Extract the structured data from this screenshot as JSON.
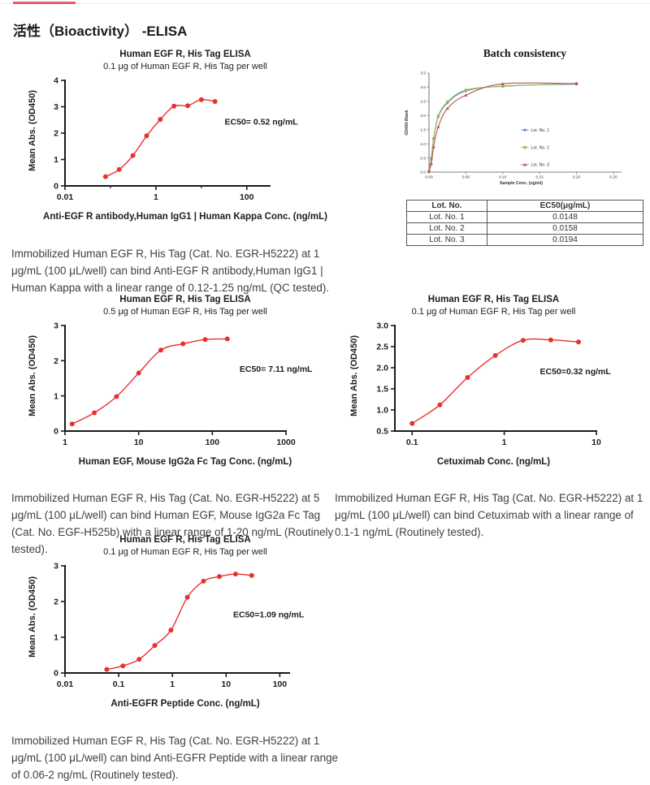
{
  "page": {
    "title": "活性（Bioactivity） -ELISA"
  },
  "captions": {
    "c1": "Immobilized Human EGF R, His Tag (Cat. No. EGR-H5222) at 1 μg/mL (100 μL/well) can bind Anti-EGF R antibody,Human IgG1 | Human Kappa with a linear range of 0.12-1.25 ng/mL (QC tested).",
    "c2": "Immobilized Human EGF R, His Tag (Cat. No. EGR-H5222) at 5 μg/mL (100 μL/well) can bind Human EGF, Mouse IgG2a Fc Tag (Cat. No. EGF-H525b) with a linear range of 1-20 ng/mL (Routinely tested).",
    "c3": "Immobilized Human EGF R, His Tag (Cat. No. EGR-H5222) at 1 μg/mL (100 μL/well) can bind Cetuximab with a linear range of 0.1-1 ng/mL (Routinely tested).",
    "c4": "Immobilized Human EGF R, His Tag (Cat. No. EGR-H5222) at 1 μg/mL (100 μL/well) can bind Anti-EGFR Peptide with a linear range of 0.06-2 ng/mL (Routinely tested)."
  },
  "batch_table": {
    "headers": [
      "Lot. No.",
      "EC50(μg/mL)"
    ],
    "rows": [
      [
        "Lot. No. 1",
        "0.0148"
      ],
      [
        "Lot. No. 2",
        "0.0158"
      ],
      [
        "Lot. No. 3",
        "0.0194"
      ]
    ]
  },
  "chart_data": [
    {
      "id": "elisa-anti-egfr-antibody",
      "type": "line",
      "title": "Human EGF R, His Tag ELISA",
      "subtitle": "0.1 μg of Human EGF R, His Tag per well",
      "xlabel": "Anti-EGF R antibody,Human IgG1 | Human Kappa Conc. (ng/mL)",
      "ylabel": "Mean Abs. (OD450)",
      "xscale": "log",
      "xlim": [
        0.01,
        320
      ],
      "ylim": [
        0,
        4
      ],
      "xticks": [
        "0.01",
        "1",
        "100"
      ],
      "minor_xticks": [
        0.1,
        10
      ],
      "yticks": [
        "0",
        "1",
        "2",
        "3",
        "4"
      ],
      "x": [
        0.078,
        0.156,
        0.3125,
        0.625,
        1.25,
        2.5,
        5,
        10,
        20
      ],
      "y": [
        0.35,
        0.62,
        1.15,
        1.9,
        2.52,
        3.02,
        3.04,
        3.27,
        3.2
      ],
      "annotation": "EC50= 0.52 ng/mL",
      "color": "#e8312d",
      "grid": false
    },
    {
      "id": "batch-consistency",
      "type": "line",
      "title": "Batch consistency",
      "xlabel": "Sample Conc. (ug/ml)",
      "ylabel": "OD450-Blank",
      "xscale": "linear",
      "xlim": [
        0,
        0.25
      ],
      "ylim": [
        0,
        3.5
      ],
      "xticks": [
        "0.00",
        "0.05",
        "0.10",
        "0.15",
        "0.20",
        "0.25"
      ],
      "yticks": [
        "0.0",
        "0.5",
        "1.0",
        "1.5",
        "2.0",
        "2.5",
        "3.0",
        "3.5"
      ],
      "x": [
        0,
        0.0031,
        0.0063,
        0.0125,
        0.025,
        0.05,
        0.1,
        0.2
      ],
      "series": [
        {
          "name": "Lot. No. 1",
          "color": "#4f81bd",
          "values": [
            0.03,
            0.5,
            1.2,
            1.95,
            2.45,
            2.87,
            3.04,
            3.11
          ]
        },
        {
          "name": "Lot. No. 2",
          "color": "#9bbb59",
          "values": [
            0.03,
            0.47,
            1.18,
            1.98,
            2.48,
            2.9,
            3.03,
            3.13
          ]
        },
        {
          "name": "Lot. No. 3",
          "color": "#c0504d",
          "values": [
            0.03,
            0.3,
            0.9,
            1.6,
            2.25,
            2.72,
            3.12,
            3.13
          ]
        }
      ],
      "legend_position": "right-inside",
      "grid": false
    },
    {
      "id": "elisa-human-egf-fc",
      "type": "line",
      "title": "Human EGF R, His Tag ELISA",
      "subtitle": "0.5 μg of Human EGF R, His Tag per well",
      "xlabel": "Human EGF, Mouse IgG2a Fc Tag Conc. (ng/mL)",
      "ylabel": "Mean Abs. (OD450)",
      "xscale": "log",
      "xlim": [
        1,
        1000
      ],
      "ylim": [
        0,
        3
      ],
      "xticks": [
        "1",
        "10",
        "100",
        "1000"
      ],
      "yticks": [
        "0",
        "1",
        "2",
        "3"
      ],
      "x": [
        1.25,
        2.5,
        5,
        10,
        20,
        40,
        80,
        160
      ],
      "y": [
        0.2,
        0.52,
        0.98,
        1.65,
        2.3,
        2.48,
        2.6,
        2.62
      ],
      "annotation": "EC50= 7.11 ng/mL",
      "color": "#e8312d",
      "grid": false
    },
    {
      "id": "elisa-cetuximab",
      "type": "line",
      "title": "Human EGF R, His Tag ELISA",
      "subtitle": "0.1 μg of Human EGF R, His Tag per well",
      "xlabel": "Cetuximab Conc. (ng/mL)",
      "ylabel": "Mean Abs. (OD450)",
      "xscale": "log",
      "xlim": [
        0.065,
        10
      ],
      "ylim": [
        0.5,
        3.0
      ],
      "xticks": [
        "0.1",
        "1",
        "10"
      ],
      "yticks": [
        "0.5",
        "1.0",
        "1.5",
        "2.0",
        "2.5",
        "3.0"
      ],
      "x": [
        0.1,
        0.2,
        0.4,
        0.8,
        1.6,
        3.2,
        6.4
      ],
      "y": [
        0.68,
        1.12,
        1.77,
        2.29,
        2.65,
        2.66,
        2.61
      ],
      "annotation": "EC50=0.32 ng/mL",
      "color": "#e8312d",
      "grid": false
    },
    {
      "id": "elisa-anti-egfr-peptide",
      "type": "line",
      "title": "Human EGF R, His Tag ELISA",
      "subtitle": "0.1 μg of Human EGF R, His Tag per well",
      "xlabel": "Anti-EGFR Peptide Conc. (ng/mL)",
      "ylabel": "Mean Abs. (OD450)",
      "xscale": "log",
      "xlim": [
        0.01,
        150
      ],
      "ylim": [
        0,
        3
      ],
      "xticks": [
        "0.01",
        "0.1",
        "1",
        "10",
        "100"
      ],
      "yticks": [
        "0",
        "1",
        "2",
        "3"
      ],
      "x": [
        0.06,
        0.12,
        0.24,
        0.47,
        0.94,
        1.9,
        3.8,
        7.5,
        15,
        30
      ],
      "y": [
        0.1,
        0.2,
        0.38,
        0.77,
        1.2,
        2.12,
        2.57,
        2.7,
        2.77,
        2.73
      ],
      "annotation": "EC50=1.09 ng/mL",
      "color": "#e8312d",
      "grid": false
    }
  ]
}
